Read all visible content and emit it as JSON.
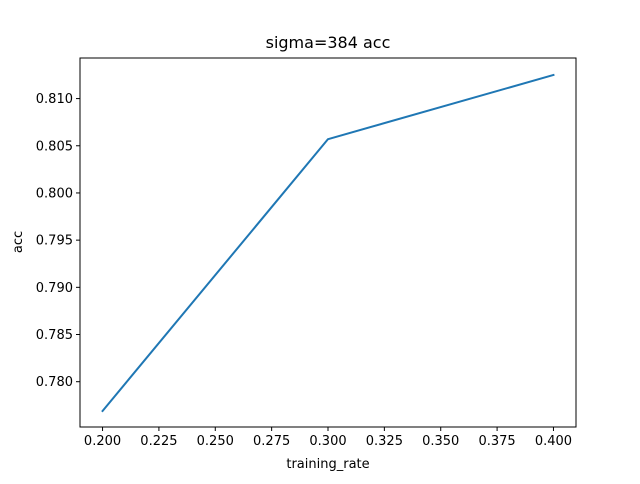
{
  "chart_data": {
    "type": "line",
    "title": "sigma=384 acc",
    "xlabel": "training_rate",
    "ylabel": "acc",
    "xlim": [
      0.19,
      0.41
    ],
    "ylim": [
      0.7752,
      0.8143
    ],
    "grid": false,
    "x_ticks": [
      "0.200",
      "0.225",
      "0.250",
      "0.275",
      "0.300",
      "0.325",
      "0.350",
      "0.375",
      "0.400"
    ],
    "y_ticks": [
      "0.780",
      "0.785",
      "0.790",
      "0.795",
      "0.800",
      "0.805",
      "0.810"
    ],
    "series": [
      {
        "color": "#1f77b4",
        "x": [
          0.2,
          0.3,
          0.4
        ],
        "values": [
          0.7769,
          0.8057,
          0.8125
        ]
      }
    ]
  }
}
